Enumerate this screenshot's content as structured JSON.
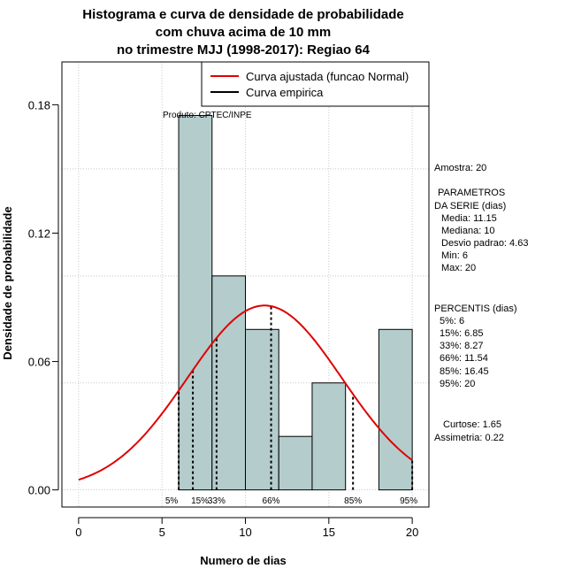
{
  "chart_data": {
    "type": "bar",
    "title": [
      "Histograma e curva de densidade de probabilidade",
      "com chuva acima de 10 mm",
      "no trimestre MJJ (1998-2017): Regiao 64"
    ],
    "xlabel": "Numero de dias",
    "ylabel": "Densidade de probabilidade",
    "xlim": [
      -1,
      21
    ],
    "ylim": [
      -0.008,
      0.2
    ],
    "x_ticks": [
      0,
      5,
      10,
      15,
      20
    ],
    "y_ticks": [
      0.0,
      0.06,
      0.12,
      0.18
    ],
    "x_tick_labels": [
      "0",
      "5",
      "10",
      "15",
      "20"
    ],
    "y_tick_labels": [
      "0.00",
      "0.06",
      "0.12",
      "0.18"
    ],
    "grid": true,
    "bars": [
      {
        "x0": 6,
        "x1": 8,
        "value": 0.175
      },
      {
        "x0": 8,
        "x1": 10,
        "value": 0.1
      },
      {
        "x0": 10,
        "x1": 12,
        "value": 0.075
      },
      {
        "x0": 12,
        "x1": 14,
        "value": 0.025
      },
      {
        "x0": 14,
        "x1": 16,
        "value": 0.05
      },
      {
        "x0": 16,
        "x1": 18,
        "value": 0.0
      },
      {
        "x0": 18,
        "x1": 20,
        "value": 0.075
      }
    ],
    "bar_color": "#b4cccc",
    "fit": {
      "mean": 11.15,
      "sd": 4.63,
      "x_from": 0,
      "x_to": 20,
      "color": "#e00000"
    },
    "percentile_lines": [
      {
        "label": "5%",
        "x": 6
      },
      {
        "label": "15%",
        "x": 6.85
      },
      {
        "label": "33%",
        "x": 8.27
      },
      {
        "label": "66%",
        "x": 11.54
      },
      {
        "label": "85%",
        "x": 16.45
      },
      {
        "label": "95%",
        "x": 20
      }
    ],
    "legend": {
      "position": "top-right",
      "entries": [
        {
          "label": "Curva ajustada (funcao Normal)",
          "color": "#e00000"
        },
        {
          "label": "Curva empirica",
          "color": "#000000"
        }
      ]
    },
    "annotation": "Produto: CPTEC/INPE"
  },
  "side_panel": {
    "amostra": "Amostra: 20",
    "param_title_1": "PARAMETROS",
    "param_title_2": "DA SERIE (dias)",
    "media": "Media: 11.15",
    "mediana": "Mediana: 10",
    "desvio": "Desvio padrao: 4.63",
    "min": "Min: 6",
    "max": "Max: 20",
    "percentis_title": "PERCENTIS (dias)",
    "p5": "5%: 6",
    "p15": "15%: 6.85",
    "p33": "33%: 8.27",
    "p66": "66%: 11.54",
    "p85": "85%: 16.45",
    "p95": "95%: 20",
    "curtose": "Curtose: 1.65",
    "assimetria": "Assimetria: 0.22"
  }
}
